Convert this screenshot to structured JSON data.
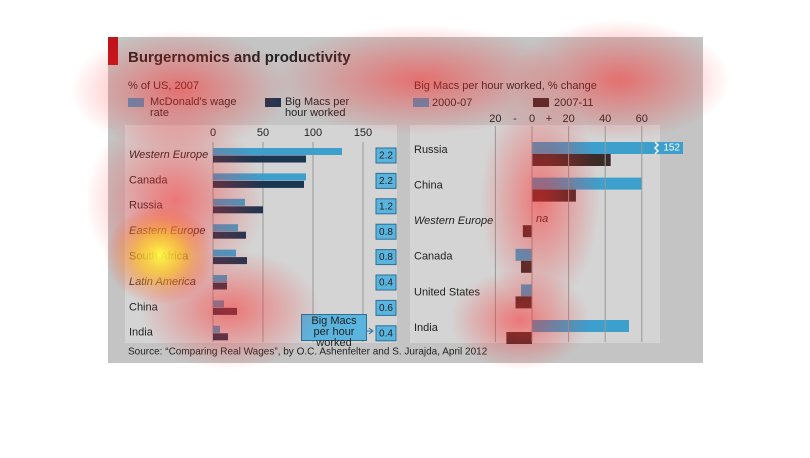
{
  "title": "Burgernomics and productivity",
  "source": "Source: “Comparing Real Wages”, by O.C. Ashenfelter and S. Jurajda, April 2012",
  "chart_data": [
    {
      "type": "bar",
      "orientation": "horizontal",
      "subtitle": "% of US, 2007",
      "categories": [
        "Western Europe",
        "Canada",
        "Russia",
        "Eastern Europe",
        "South Africa",
        "Latin America",
        "China",
        "India"
      ],
      "italic": [
        true,
        false,
        false,
        true,
        false,
        true,
        false,
        false
      ],
      "series": [
        {
          "name": "McDonald's wage rate",
          "color": "#3d9fcc",
          "values": [
            129,
            93,
            32,
            25,
            23,
            14,
            11,
            7
          ]
        },
        {
          "name": "Big Macs per hour worked",
          "color": "#1c3550",
          "values": [
            93,
            91,
            50,
            33,
            34,
            14,
            24,
            15
          ]
        }
      ],
      "annotation": "Big Macs per hour worked",
      "box_values": [
        2.2,
        2.2,
        1.2,
        0.8,
        0.8,
        0.4,
        0.6,
        0.4
      ],
      "xlim": [
        0,
        150
      ],
      "xticks": [
        0,
        50,
        100,
        150
      ],
      "grid": true
    },
    {
      "type": "bar",
      "orientation": "horizontal",
      "subtitle": "Big Macs per hour worked, % change",
      "categories": [
        "Russia",
        "China",
        "Western Europe",
        "Canada",
        "United States",
        "India"
      ],
      "series": [
        {
          "name": "2000-07",
          "color": "#3d9fcc",
          "values": [
            152,
            60,
            null,
            -9,
            -6,
            53
          ],
          "value_labels": [
            "152",
            null,
            "na",
            null,
            null,
            null
          ]
        },
        {
          "name": "2007-11",
          "color": "#3a2b28",
          "values": [
            43,
            24,
            -5,
            -6,
            -9,
            -14
          ]
        }
      ],
      "xlim": [
        -20,
        67
      ],
      "xticks": [
        {
          "value": -20,
          "label": "20"
        },
        0,
        20,
        40,
        60
      ],
      "axis_signs": [
        "-",
        "+"
      ],
      "grid": true
    }
  ]
}
